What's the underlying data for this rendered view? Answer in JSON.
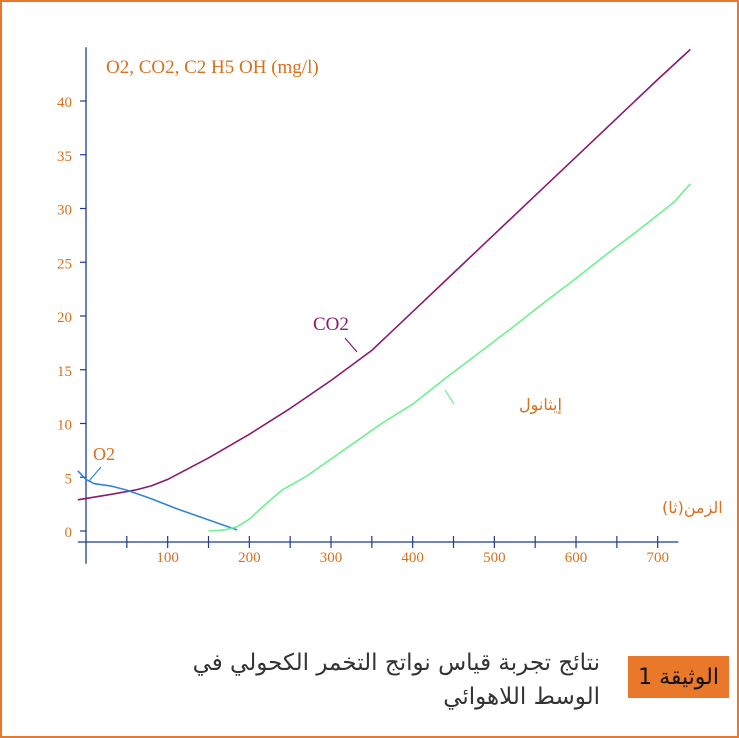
{
  "colors": {
    "frame": "#e9782b",
    "axis": "#1f3a93",
    "label": "#d8701c",
    "co2": "#8a1a6e",
    "o2": "#2f86d6",
    "ethanol": "#6ff08f"
  },
  "chart_data": {
    "type": "line",
    "ylabel": "O2, CO2, C2 H5 OH  (mg/l)",
    "xlabel": "الزمن(ثا)",
    "xlim": [
      -10,
      740
    ],
    "ylim": [
      -1,
      45
    ],
    "xticks": [
      100,
      200,
      300,
      400,
      500,
      600,
      700
    ],
    "yticks": [
      0,
      5,
      10,
      15,
      20,
      25,
      30,
      35,
      40
    ],
    "grid": false,
    "series": [
      {
        "name": "CO2",
        "x": [
          -10,
          30,
          60,
          80,
          100,
          150,
          200,
          250,
          300,
          350,
          400,
          450,
          500,
          550,
          600,
          650,
          700,
          740
        ],
        "y": [
          2.9,
          3.4,
          3.8,
          4.2,
          4.8,
          6.8,
          9.0,
          11.4,
          14.0,
          16.8,
          20.4,
          24.0,
          27.6,
          31.2,
          34.8,
          38.4,
          42.0,
          44.8
        ]
      },
      {
        "name": "O2",
        "x": [
          -10,
          0,
          10,
          30,
          50,
          80,
          110,
          140,
          170,
          185
        ],
        "y": [
          5.6,
          4.8,
          4.4,
          4.2,
          3.8,
          3.0,
          2.1,
          1.3,
          0.5,
          0.1
        ]
      },
      {
        "name": "إيثانول",
        "x": [
          150,
          170,
          185,
          200,
          220,
          240,
          270,
          300,
          330,
          360,
          400,
          440,
          480,
          520,
          560,
          600,
          640,
          680,
          720,
          740
        ],
        "y": [
          0.0,
          0.1,
          0.4,
          1.1,
          2.5,
          3.8,
          5.1,
          6.7,
          8.3,
          9.9,
          11.8,
          14.2,
          16.5,
          18.8,
          21.2,
          23.5,
          25.9,
          28.2,
          30.6,
          32.3
        ]
      }
    ],
    "annotations": [
      "CO2",
      "O2",
      "إيثانول"
    ]
  },
  "caption": {
    "text": "نتائج تجربة قياس نواتج التخمر الكحولي في الوسط اللاهوائي",
    "badge": "الوثيقة 1"
  }
}
